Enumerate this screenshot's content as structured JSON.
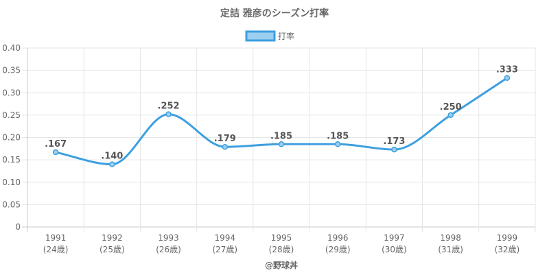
{
  "chart_data": {
    "type": "line",
    "title": "定詰 雅彦のシーズン打率",
    "categories": [
      "1991",
      "1992",
      "1993",
      "1994",
      "1995",
      "1996",
      "1997",
      "1998",
      "1999"
    ],
    "category_sublabels": [
      "(24歳)",
      "(25歳)",
      "(26歳)",
      "(27歳)",
      "(28歳)",
      "(29歳)",
      "(30歳)",
      "(31歳)",
      "(32歳)"
    ],
    "series": [
      {
        "name": "打率",
        "values": [
          0.167,
          0.14,
          0.252,
          0.179,
          0.185,
          0.185,
          0.173,
          0.25,
          0.333
        ],
        "labels": [
          ".167",
          ".140",
          ".252",
          ".179",
          ".185",
          ".185",
          ".173",
          ".250",
          ".333"
        ],
        "color": "#3d9fe0",
        "fill": "#9ccef0"
      }
    ],
    "y_ticks": [
      "0",
      "0.05",
      "0.10",
      "0.15",
      "0.20",
      "0.25",
      "0.30",
      "0.35",
      "0.40"
    ],
    "ylim": [
      0,
      0.4
    ],
    "legend_position": "top",
    "grid": true,
    "footer": "@野球丼"
  }
}
